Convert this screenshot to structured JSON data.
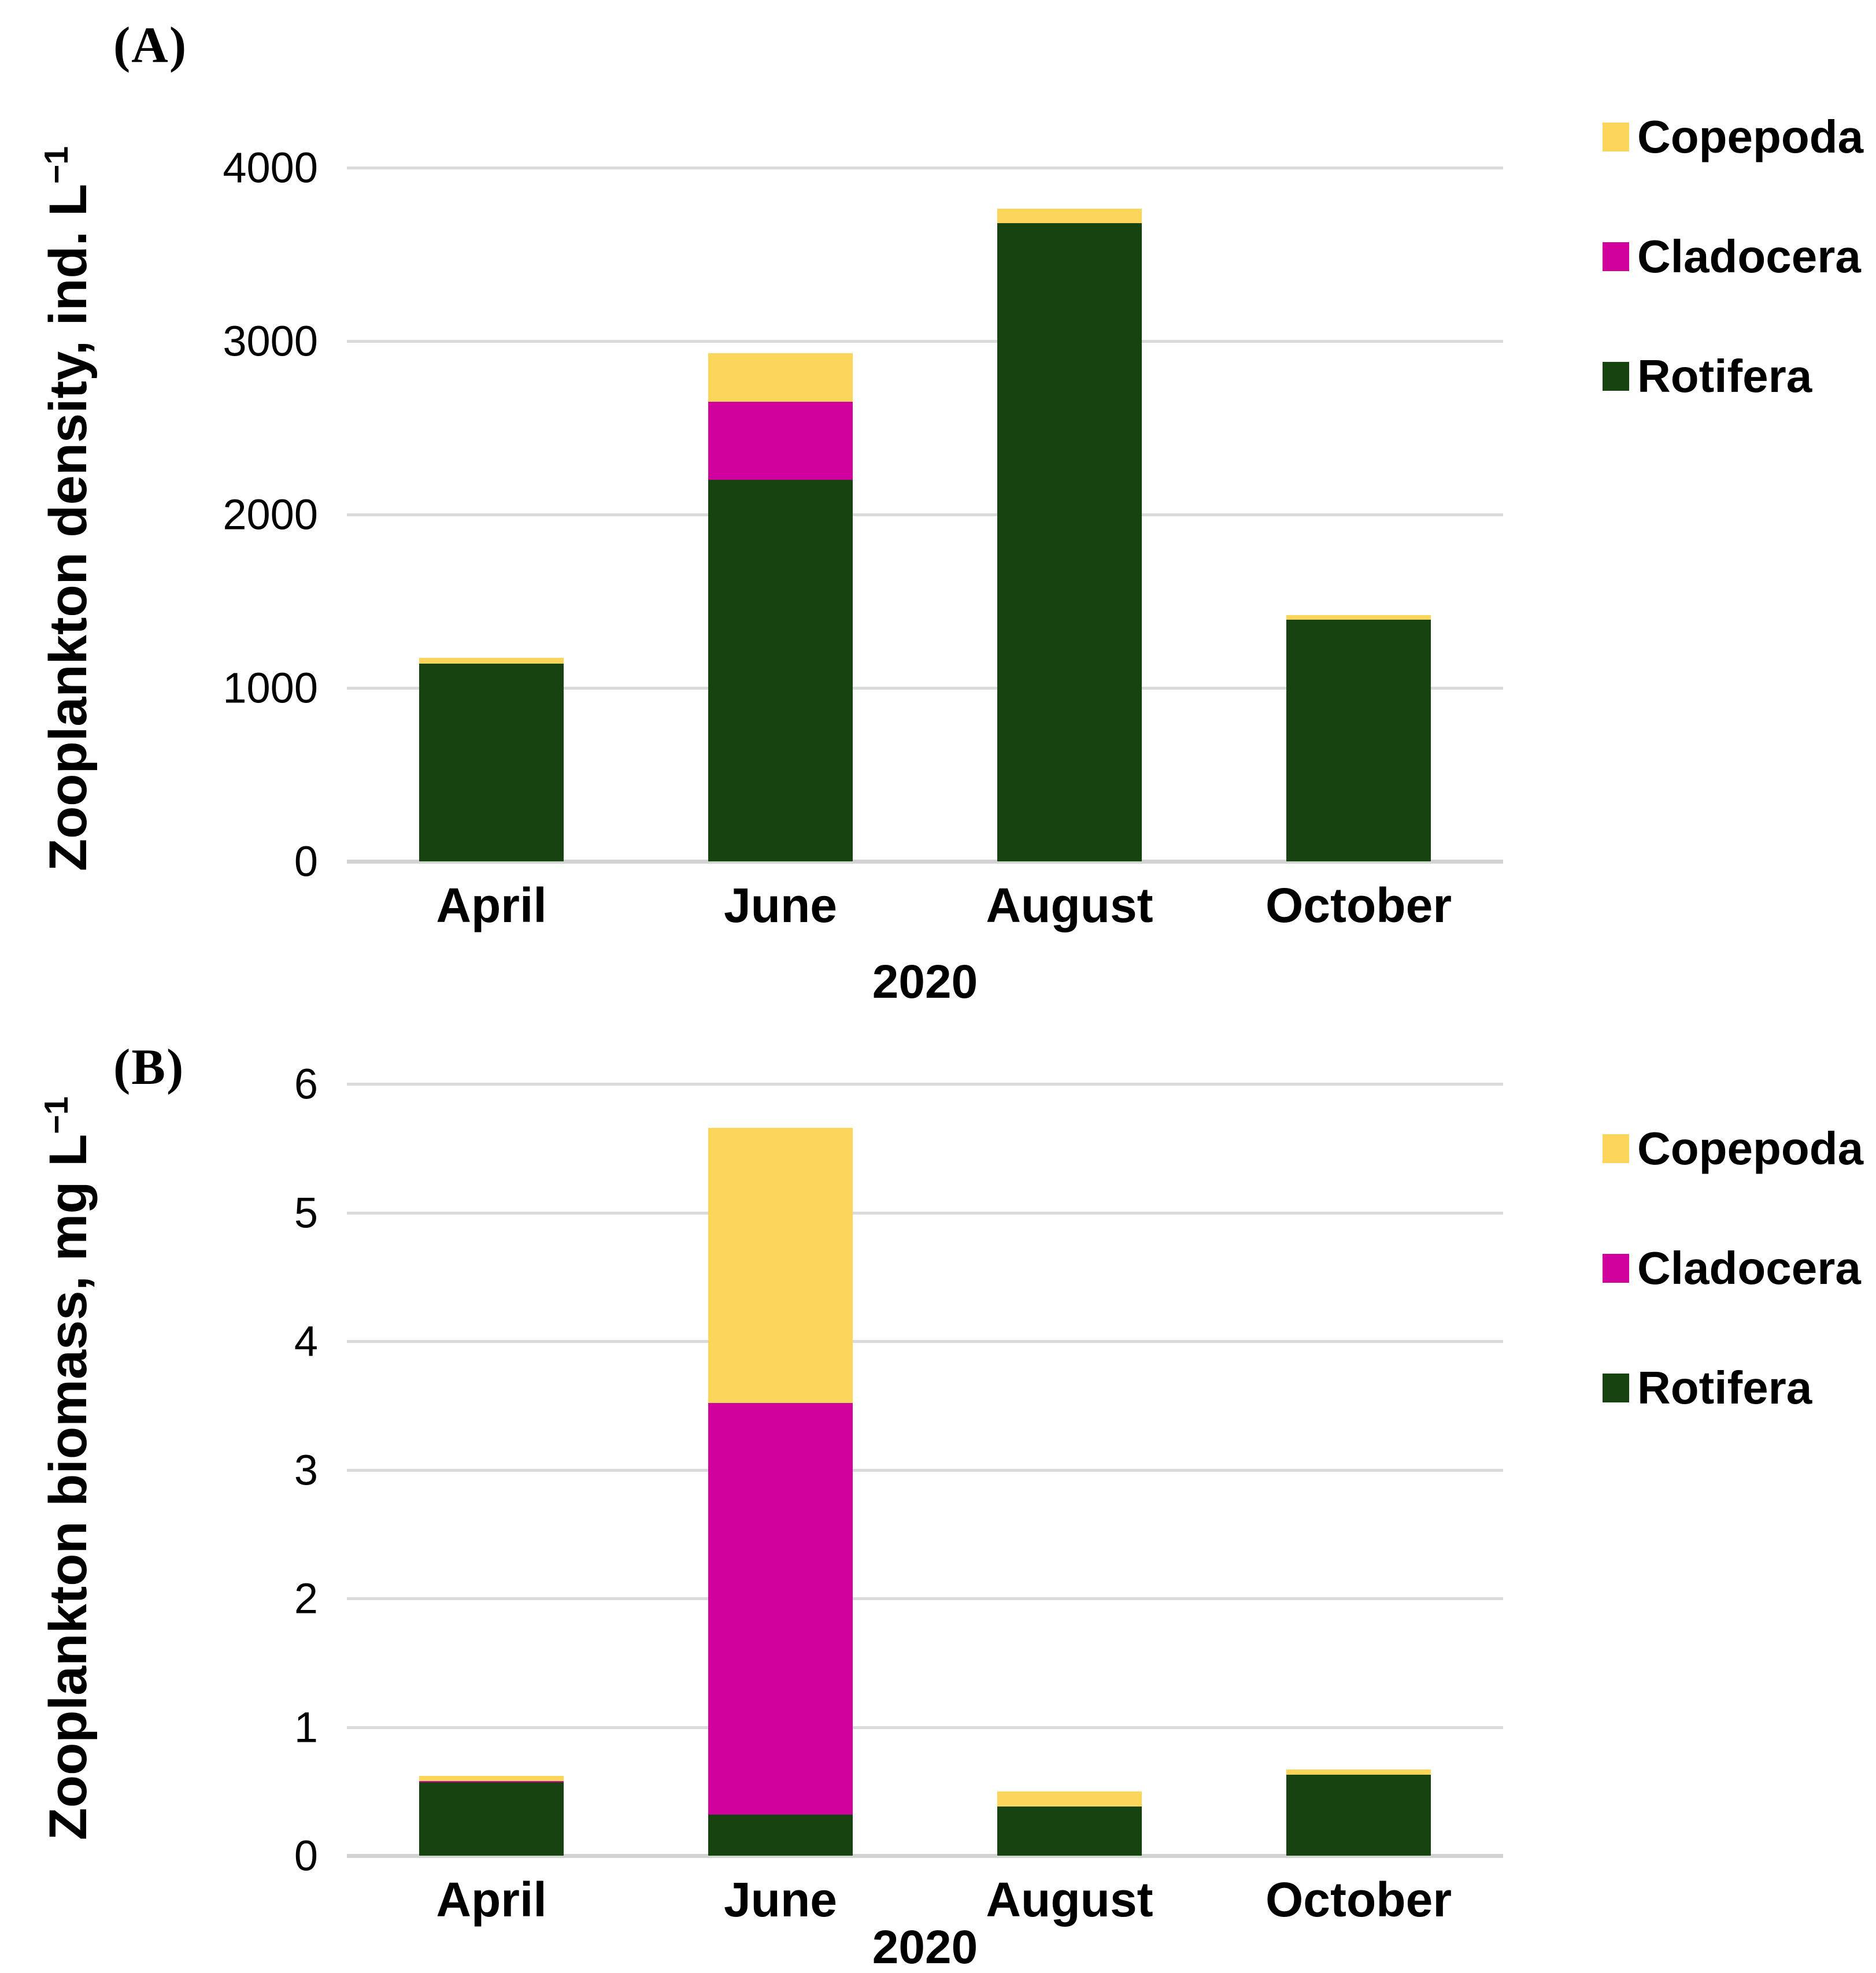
{
  "colors": {
    "copepoda": "#FCD55B",
    "cladocera": "#D0009D",
    "rotifera": "#164310",
    "gridline": "#DADADA",
    "axis_line": "#D3D3D3",
    "text": "#000000"
  },
  "panels": [
    {
      "label": "(A)",
      "y_title": "Zooplankton density, ind. L",
      "y_title_sup": "−1",
      "x_title": "2020"
    },
    {
      "label": "(B)",
      "y_title": "Zooplankton biomass, mg L",
      "y_title_sup": "−1",
      "x_title": "2020"
    }
  ],
  "chart_data": [
    {
      "type": "bar",
      "stacked": true,
      "panel": "A",
      "title": "(A)",
      "categories": [
        "April",
        "June",
        "August",
        "October"
      ],
      "series": [
        {
          "name": "Rotifera",
          "color": "#164310",
          "values": [
            1140,
            2200,
            3680,
            1395
          ]
        },
        {
          "name": "Cladocera",
          "color": "#D0009D",
          "values": [
            0,
            450,
            0,
            0
          ]
        },
        {
          "name": "Copepoda",
          "color": "#FCD55B",
          "values": [
            35,
            280,
            85,
            25
          ]
        }
      ],
      "totals": [
        1175,
        2930,
        3765,
        1420
      ],
      "xlabel": "2020",
      "ylabel": "Zooplankton density, ind. L−1",
      "ylim": [
        0,
        4000
      ],
      "ytick_step": 1000,
      "yticks": [
        0,
        1000,
        2000,
        3000,
        4000
      ],
      "grid": true,
      "legend_position": "right",
      "legend_order": [
        "Copepoda",
        "Cladocera",
        "Rotifera"
      ]
    },
    {
      "type": "bar",
      "stacked": true,
      "panel": "B",
      "title": "(B)",
      "categories": [
        "April",
        "June",
        "August",
        "October"
      ],
      "series": [
        {
          "name": "Rotifera",
          "color": "#164310",
          "values": [
            0.57,
            0.32,
            0.38,
            0.63
          ]
        },
        {
          "name": "Cladocera",
          "color": "#D0009D",
          "values": [
            0.01,
            3.2,
            0,
            0
          ]
        },
        {
          "name": "Copepoda",
          "color": "#FCD55B",
          "values": [
            0.04,
            2.14,
            0.12,
            0.04
          ]
        }
      ],
      "totals": [
        0.62,
        5.66,
        0.5,
        0.67
      ],
      "xlabel": "2020",
      "ylabel": "Zooplankton biomass, mg L−1",
      "ylim": [
        0,
        6
      ],
      "ytick_step": 1,
      "yticks": [
        0,
        1,
        2,
        3,
        4,
        5,
        6
      ],
      "grid": true,
      "legend_position": "right",
      "legend_order": [
        "Copepoda",
        "Cladocera",
        "Rotifera"
      ]
    }
  ]
}
